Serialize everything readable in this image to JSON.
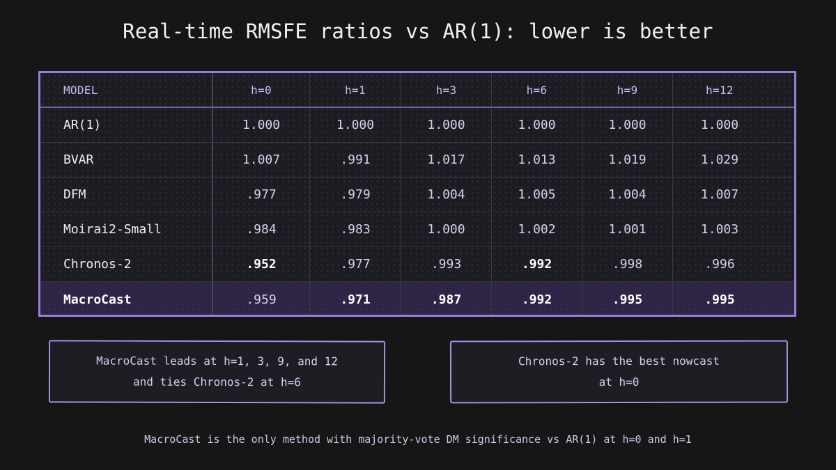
{
  "title": "Real-time RMSFE ratios vs AR(1): lower is better",
  "accent_color": "#9a7ed9",
  "chart_data": {
    "type": "table",
    "title": "Real-time RMSFE ratios vs AR(1): lower is better",
    "columns": [
      "MODEL",
      "h=0",
      "h=1",
      "h=3",
      "h=6",
      "h=9",
      "h=12"
    ],
    "rows": [
      {
        "model": "AR(1)",
        "values": [
          "1.000",
          "1.000",
          "1.000",
          "1.000",
          "1.000",
          "1.000"
        ],
        "bold": [
          false,
          false,
          false,
          false,
          false,
          false
        ],
        "highlight": false
      },
      {
        "model": "BVAR",
        "values": [
          "1.007",
          ".991",
          "1.017",
          "1.013",
          "1.019",
          "1.029"
        ],
        "bold": [
          false,
          false,
          false,
          false,
          false,
          false
        ],
        "highlight": false
      },
      {
        "model": "DFM",
        "values": [
          ".977",
          ".979",
          "1.004",
          "1.005",
          "1.004",
          "1.007"
        ],
        "bold": [
          false,
          false,
          false,
          false,
          false,
          false
        ],
        "highlight": false
      },
      {
        "model": "Moirai2-Small",
        "values": [
          ".984",
          ".983",
          "1.000",
          "1.002",
          "1.001",
          "1.003"
        ],
        "bold": [
          false,
          false,
          false,
          false,
          false,
          false
        ],
        "highlight": false
      },
      {
        "model": "Chronos-2",
        "values": [
          ".952",
          ".977",
          ".993",
          ".992",
          ".998",
          ".996"
        ],
        "bold": [
          true,
          false,
          false,
          true,
          false,
          false
        ],
        "highlight": false
      },
      {
        "model": "MacroCast",
        "values": [
          ".959",
          ".971",
          ".987",
          ".992",
          ".995",
          ".995"
        ],
        "bold": [
          false,
          true,
          true,
          true,
          true,
          true
        ],
        "highlight": true
      }
    ]
  },
  "notes": {
    "left": {
      "line1": "MacroCast leads at h=1, 3, 9, and 12",
      "line2": "and ties Chronos-2 at h=6"
    },
    "right": {
      "line1": "Chronos-2 has the best nowcast",
      "line2": "at h=0"
    }
  },
  "footer": "MacroCast is the only method with majority-vote DM significance vs AR(1) at h=0 and h=1"
}
